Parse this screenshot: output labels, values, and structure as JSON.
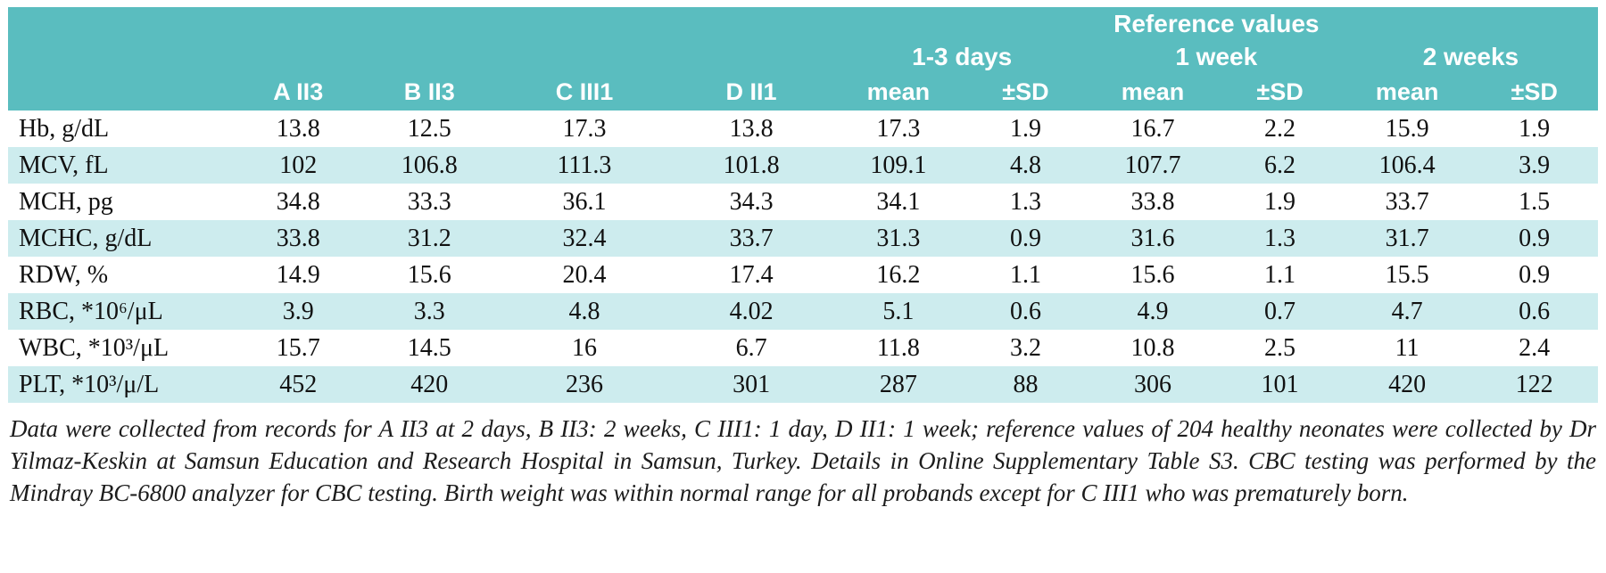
{
  "table": {
    "header": {
      "reference_values_label": "Reference values",
      "groups": [
        {
          "label": "1-3 days"
        },
        {
          "label": "1 week"
        },
        {
          "label": "2 weeks"
        }
      ],
      "columns": [
        "",
        "A II3",
        "B II3",
        "C III1",
        "D II1",
        "mean",
        "±SD",
        "mean",
        "±SD",
        "mean",
        "±SD"
      ]
    },
    "rows": [
      {
        "label": "Hb, g/dL",
        "values": [
          "13.8",
          "12.5",
          "17.3",
          "13.8",
          "17.3",
          "1.9",
          "16.7",
          "2.2",
          "15.9",
          "1.9"
        ]
      },
      {
        "label": "MCV, fL",
        "values": [
          "102",
          "106.8",
          "111.3",
          "101.8",
          "109.1",
          "4.8",
          "107.7",
          "6.2",
          "106.4",
          "3.9"
        ]
      },
      {
        "label": "MCH, pg",
        "values": [
          "34.8",
          "33.3",
          "36.1",
          "34.3",
          "34.1",
          "1.3",
          "33.8",
          "1.9",
          "33.7",
          "1.5"
        ]
      },
      {
        "label": "MCHC, g/dL",
        "values": [
          "33.8",
          "31.2",
          "32.4",
          "33.7",
          "31.3",
          "0.9",
          "31.6",
          "1.3",
          "31.7",
          "0.9"
        ]
      },
      {
        "label": "RDW, %",
        "values": [
          "14.9",
          "15.6",
          "20.4",
          "17.4",
          "16.2",
          "1.1",
          "15.6",
          "1.1",
          "15.5",
          "0.9"
        ]
      },
      {
        "label": "RBC, *10⁶/μL",
        "values": [
          "3.9",
          "3.3",
          "4.8",
          "4.02",
          "5.1",
          "0.6",
          "4.9",
          "0.7",
          "4.7",
          "0.6"
        ]
      },
      {
        "label": "WBC, *10³/μL",
        "values": [
          "15.7",
          "14.5",
          "16",
          "6.7",
          "11.8",
          "3.2",
          "10.8",
          "2.5",
          "11",
          "2.4"
        ]
      },
      {
        "label": "PLT, *10³/μ/L",
        "values": [
          "452",
          "420",
          "236",
          "301",
          "287",
          "88",
          "306",
          "101",
          "420",
          "122"
        ]
      }
    ]
  },
  "footnote": "Data were collected from records for A II3 at 2 days, B II3: 2 weeks, C III1: 1 day, D II1: 1 week; reference values of 204 healthy neonates were collected by Dr Yilmaz-Keskin at Samsun Education and Research Hospital in Samsun, Turkey. Details in Online Supplementary Table S3. CBC testing was performed by the Mindray BC-6800 analyzer for CBC testing. Birth weight was within normal range for all probands except for C III1 who was prematurely born.",
  "colors": {
    "header_teal": "#5abdbf",
    "stripe_teal": "#cdecee"
  }
}
